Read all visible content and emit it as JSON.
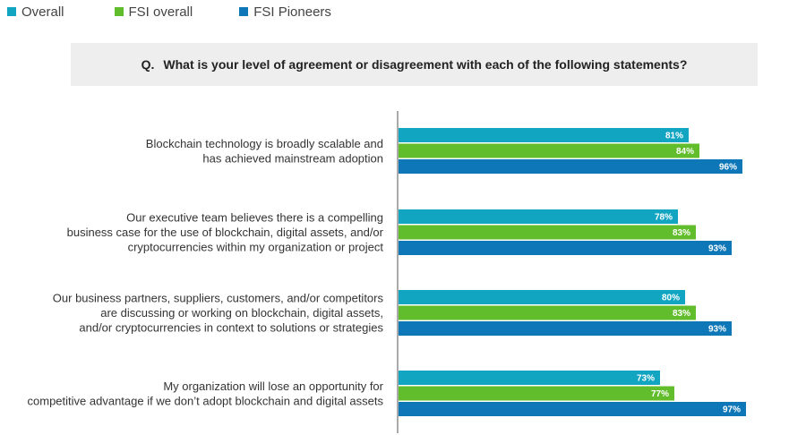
{
  "question": {
    "prefix": "Q.",
    "text": "What is your level of agreement or disagreement with each of the following statements?"
  },
  "chart_data": {
    "type": "bar",
    "orientation": "horizontal",
    "title": "",
    "xlabel": "",
    "ylabel": "",
    "legend_position": "top-left",
    "grid": false,
    "xlim": [
      0,
      100
    ],
    "value_suffix": "%",
    "categories": [
      [
        "Blockchain technology is broadly scalable and",
        "has achieved mainstream adoption"
      ],
      [
        "Our executive team believes there is a compelling",
        "business case for the use of blockchain, digital assets, and/or",
        "cryptocurrencies within my organization or project"
      ],
      [
        "Our business partners, suppliers, customers, and/or competitors",
        "are discussing or working on blockchain, digital assets,",
        "and/or cryptocurrencies in context to solutions or strategies"
      ],
      [
        "My organization will lose an opportunity for",
        "competitive advantage if we don’t adopt blockchain and digital assets"
      ]
    ],
    "series": [
      {
        "name": "Overall",
        "color": "#12a5c2",
        "values": [
          81,
          78,
          80,
          73
        ]
      },
      {
        "name": "FSI overall",
        "color": "#62bd2c",
        "values": [
          84,
          83,
          83,
          77
        ]
      },
      {
        "name": "FSI Pioneers",
        "color": "#0e77b8",
        "values": [
          96,
          93,
          93,
          97
        ]
      }
    ]
  }
}
